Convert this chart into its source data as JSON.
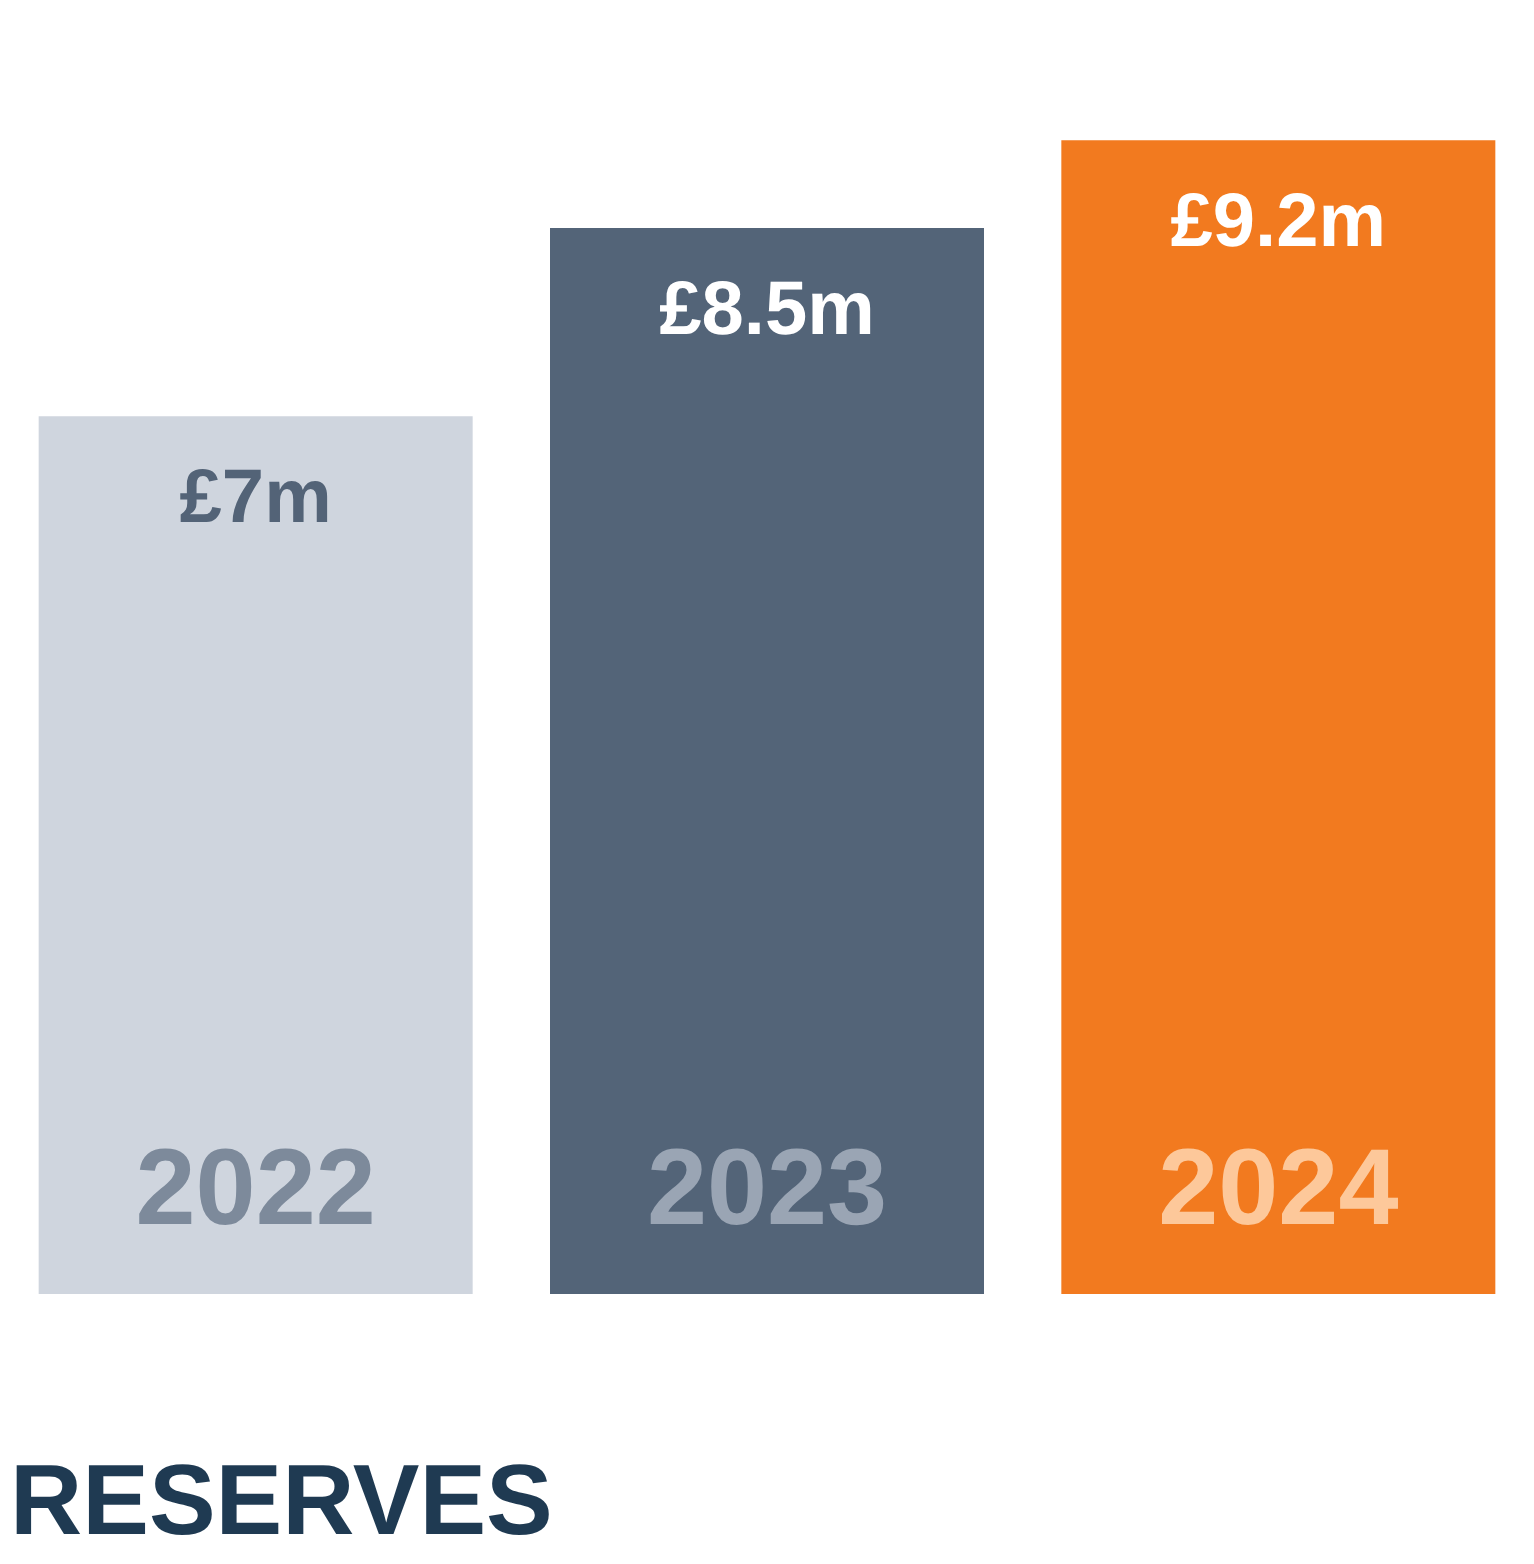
{
  "chart_data": {
    "type": "bar",
    "title": "RESERVES",
    "categories": [
      "2022",
      "2023",
      "2024"
    ],
    "values": [
      7,
      8.5,
      9.2
    ],
    "colors": [
      "#cfd5de",
      "#536478",
      "#f27a1f"
    ],
    "value_labels": [
      "£7m",
      "£8.5m",
      "£9.2m"
    ]
  }
}
